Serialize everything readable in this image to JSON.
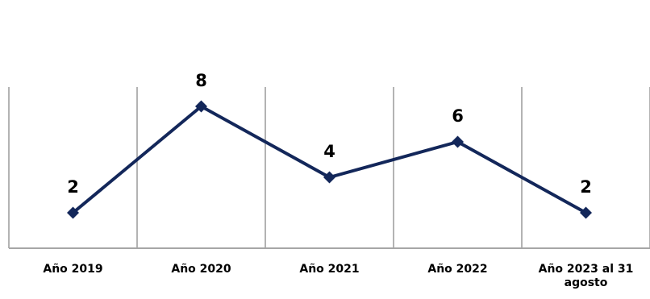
{
  "chart_data": {
    "type": "line",
    "title": "",
    "xlabel": "",
    "ylabel": "",
    "categories": [
      "Año 2019",
      "Año 2020",
      "Año 2021",
      "Año 2022",
      "Año 2023 al 31 agosto"
    ],
    "series": [
      {
        "values": [
          2,
          8,
          4,
          6,
          2
        ],
        "color": "#13275a",
        "marker": "diamond"
      }
    ],
    "ylim": [
      0,
      10
    ],
    "grid": "vertical",
    "data_labels": true,
    "legend": "none"
  }
}
